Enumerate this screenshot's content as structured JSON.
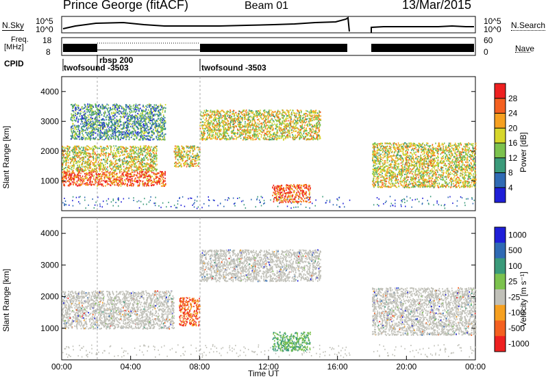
{
  "header": {
    "station": "Prince George (fitACF)",
    "beam": "Beam 01",
    "date": "13/Mar/2015"
  },
  "strip_labels": {
    "nsky": "N.Sky",
    "nsky_ticks": [
      "10^5",
      "10^0"
    ],
    "nsearch": "N.Search",
    "nsearch_ticks": [
      "10^5",
      "10^0"
    ],
    "freq_title": "Freq.",
    "freq_unit": "[MHz]",
    "freq_ticks": [
      "18",
      "8"
    ],
    "nave": "Nave",
    "nave_ticks": [
      "60",
      "0"
    ],
    "cpid": "CPID",
    "cpid_entries": [
      "twofsound -3503",
      "rbsp 200",
      "twofsound -3503"
    ]
  },
  "chart_data": [
    {
      "type": "heatmap",
      "name": "power",
      "ylabel": "Slant Range [km]",
      "xlabel": "",
      "ylim": [
        0,
        4500
      ],
      "yticks": [
        "1000",
        "2000",
        "3000",
        "4000"
      ],
      "xlim_hours": [
        0,
        24
      ],
      "colorbar": {
        "label": "Power [dB]",
        "ticks": [
          "28",
          "24",
          "20",
          "16",
          "12",
          "8",
          "4"
        ],
        "colors": [
          "#1f1fd8",
          "#2f6ab4",
          "#3a9a7a",
          "#7cc24e",
          "#d6d62a",
          "#f6a020",
          "#f46020",
          "#ee2020"
        ]
      },
      "regions": [
        {
          "t0": 0.0,
          "t1": 6.0,
          "r0": 850,
          "r1": 1350,
          "level": "high"
        },
        {
          "t0": 0.0,
          "t1": 5.5,
          "r0": 1350,
          "r1": 2200,
          "level": "medium"
        },
        {
          "t0": 0.5,
          "t1": 6.0,
          "r0": 2400,
          "r1": 3600,
          "level": "low"
        },
        {
          "t0": 6.5,
          "t1": 8.0,
          "r0": 1500,
          "r1": 2200,
          "level": "medium"
        },
        {
          "t0": 8.0,
          "t1": 15.0,
          "r0": 2400,
          "r1": 3400,
          "level": "medium"
        },
        {
          "t0": 12.2,
          "t1": 14.4,
          "r0": 300,
          "r1": 900,
          "level": "high"
        },
        {
          "t0": 18.0,
          "t1": 24.0,
          "r0": 800,
          "r1": 2300,
          "level": "medium"
        }
      ]
    },
    {
      "type": "heatmap",
      "name": "velocity",
      "ylabel": "Slant Range [km]",
      "xlabel": "Time UT",
      "ylim": [
        0,
        4500
      ],
      "yticks": [
        "1000",
        "2000",
        "3000",
        "4000"
      ],
      "xticks": [
        "00:00",
        "04:00",
        "08:00",
        "12:00",
        "16:00",
        "20:00",
        "00:00"
      ],
      "xlim_hours": [
        0,
        24
      ],
      "colorbar": {
        "label": "Velocity [m s⁻¹]",
        "ticks": [
          "1000",
          "500",
          "100",
          "25",
          "-25",
          "-100",
          "-500",
          "-1000"
        ],
        "colors": [
          "#1f1fd8",
          "#2f6ab4",
          "#3a9a7a",
          "#7cc24e",
          "#c0c0b8",
          "#f6a020",
          "#f46020",
          "#ee2020"
        ]
      },
      "regions": [
        {
          "t0": 0.0,
          "t1": 6.5,
          "r0": 1000,
          "r1": 2200,
          "level": "ground"
        },
        {
          "t0": 6.8,
          "t1": 8.0,
          "r0": 1100,
          "r1": 2000,
          "level": "away"
        },
        {
          "t0": 8.0,
          "t1": 15.0,
          "r0": 2500,
          "r1": 3500,
          "level": "ground"
        },
        {
          "t0": 12.2,
          "t1": 14.4,
          "r0": 300,
          "r1": 900,
          "level": "toward"
        },
        {
          "t0": 18.0,
          "t1": 24.0,
          "r0": 800,
          "r1": 2300,
          "level": "ground"
        }
      ]
    }
  ]
}
